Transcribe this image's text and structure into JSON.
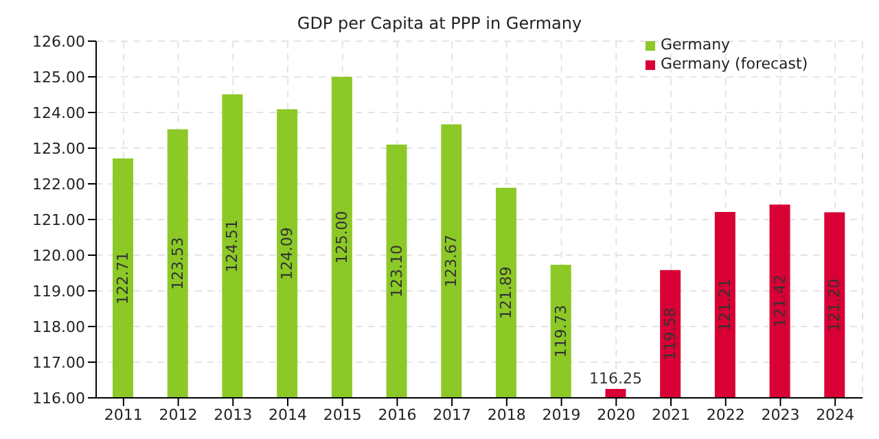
{
  "chart_data": {
    "type": "bar",
    "title": "GDP per Capita at PPP in Germany",
    "categories": [
      "2011",
      "2012",
      "2013",
      "2014",
      "2015",
      "2016",
      "2017",
      "2018",
      "2019",
      "2020",
      "2021",
      "2022",
      "2023",
      "2024"
    ],
    "series": [
      {
        "name": "Germany",
        "color": "#8cc927",
        "values": [
          122.71,
          123.53,
          124.51,
          124.09,
          125.0,
          123.1,
          123.67,
          121.89,
          119.73,
          null,
          null,
          null,
          null,
          null
        ],
        "value_labels": [
          "122.71",
          "123.53",
          "124.51",
          "124.09",
          "125.00",
          "123.10",
          "123.67",
          "121.89",
          "119.73",
          null,
          null,
          null,
          null,
          null
        ]
      },
      {
        "name": "Germany (forecast)",
        "color": "#d80034",
        "values": [
          null,
          null,
          null,
          null,
          null,
          null,
          null,
          null,
          null,
          116.25,
          119.58,
          121.21,
          121.42,
          121.2
        ],
        "value_labels": [
          null,
          null,
          null,
          null,
          null,
          null,
          null,
          null,
          null,
          "116.25",
          "119.58",
          "121.21",
          "121.42",
          "121.20"
        ]
      }
    ],
    "grid": true,
    "legend": "top right",
    "ylim": [
      116,
      126
    ],
    "yticks": [
      {
        "value": 116,
        "label": "116.00"
      },
      {
        "value": 117,
        "label": "117.00"
      },
      {
        "value": 118,
        "label": "118.00"
      },
      {
        "value": 119,
        "label": "119.00"
      },
      {
        "value": 120,
        "label": "120.00"
      },
      {
        "value": 121,
        "label": "121.00"
      },
      {
        "value": 122,
        "label": "122.00"
      },
      {
        "value": 123,
        "label": "123.00"
      },
      {
        "value": 124,
        "label": "124.00"
      },
      {
        "value": 125,
        "label": "125.00"
      },
      {
        "value": 126,
        "label": "126.00"
      }
    ]
  }
}
